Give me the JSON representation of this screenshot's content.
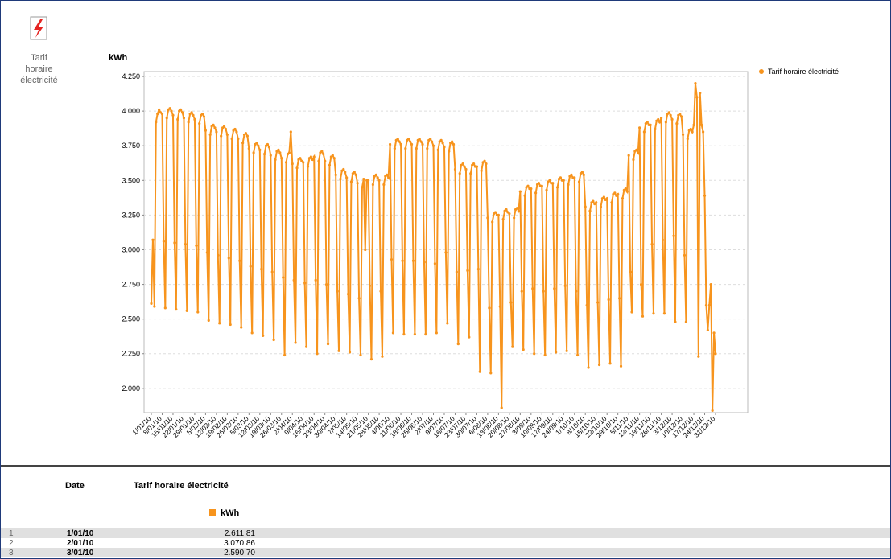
{
  "header": {
    "icon_label": "Tarif horaire électricité"
  },
  "chart_data": {
    "type": "line",
    "y_label": "kWh",
    "legend": "top-right",
    "grid": true,
    "ylim": [
      1825,
      4285
    ],
    "yticks": [
      {
        "value": 2000,
        "label": "2.000"
      },
      {
        "value": 2250,
        "label": "2.250"
      },
      {
        "value": 2500,
        "label": "2.500"
      },
      {
        "value": 2750,
        "label": "2.750"
      },
      {
        "value": 3000,
        "label": "3.000"
      },
      {
        "value": 3250,
        "label": "3.250"
      },
      {
        "value": 3500,
        "label": "3.500"
      },
      {
        "value": 3750,
        "label": "3.750"
      },
      {
        "value": 4000,
        "label": "4.000"
      },
      {
        "value": 4250,
        "label": "4.250"
      }
    ],
    "categories": [
      "1/01/10",
      null,
      null,
      null,
      null,
      null,
      null,
      "8/01/10",
      null,
      null,
      null,
      null,
      null,
      null,
      "15/01/10",
      null,
      null,
      null,
      null,
      null,
      null,
      "22/01/10",
      null,
      null,
      null,
      null,
      null,
      null,
      "29/01/10",
      null,
      null,
      null,
      null,
      null,
      null,
      "5/02/10",
      null,
      null,
      null,
      null,
      null,
      null,
      "12/02/10",
      null,
      null,
      null,
      null,
      null,
      null,
      "19/02/10",
      null,
      null,
      null,
      null,
      null,
      null,
      "26/02/10",
      null,
      null,
      null,
      null,
      null,
      null,
      "5/03/10",
      null,
      null,
      null,
      null,
      null,
      null,
      "12/03/10",
      null,
      null,
      null,
      null,
      null,
      null,
      "19/03/10",
      null,
      null,
      null,
      null,
      null,
      null,
      "26/03/10",
      null,
      null,
      null,
      null,
      null,
      null,
      "2/04/10",
      null,
      null,
      null,
      null,
      null,
      null,
      "9/04/10",
      null,
      null,
      null,
      null,
      null,
      null,
      "16/04/10",
      null,
      null,
      null,
      null,
      null,
      null,
      "23/04/10",
      null,
      null,
      null,
      null,
      null,
      null,
      "30/04/10",
      null,
      null,
      null,
      null,
      null,
      null,
      "7/05/10",
      null,
      null,
      null,
      null,
      null,
      null,
      "14/05/10",
      null,
      null,
      null,
      null,
      null,
      null,
      "21/05/10",
      null,
      null,
      null,
      null,
      null,
      null,
      "28/05/10",
      null,
      null,
      null,
      null,
      null,
      null,
      "4/06/10",
      null,
      null,
      null,
      null,
      null,
      null,
      "11/06/10",
      null,
      null,
      null,
      null,
      null,
      null,
      "18/06/10",
      null,
      null,
      null,
      null,
      null,
      null,
      "25/06/10",
      null,
      null,
      null,
      null,
      null,
      null,
      "2/07/10",
      null,
      null,
      null,
      null,
      null,
      null,
      "9/07/10",
      null,
      null,
      null,
      null,
      null,
      null,
      "16/07/10",
      null,
      null,
      null,
      null,
      null,
      null,
      "23/07/10",
      null,
      null,
      null,
      null,
      null,
      null,
      "30/07/10",
      null,
      null,
      null,
      null,
      null,
      null,
      "6/08/10",
      null,
      null,
      null,
      null,
      null,
      null,
      "13/08/10",
      null,
      null,
      null,
      null,
      null,
      null,
      "20/08/10",
      null,
      null,
      null,
      null,
      null,
      null,
      "27/08/10",
      null,
      null,
      null,
      null,
      null,
      null,
      "3/09/10",
      null,
      null,
      null,
      null,
      null,
      null,
      "10/09/10",
      null,
      null,
      null,
      null,
      null,
      null,
      "17/09/10",
      null,
      null,
      null,
      null,
      null,
      null,
      "24/09/10",
      null,
      null,
      null,
      null,
      null,
      null,
      "1/10/10",
      null,
      null,
      null,
      null,
      null,
      null,
      "8/10/10",
      null,
      null,
      null,
      null,
      null,
      null,
      "15/10/10",
      null,
      null,
      null,
      null,
      null,
      null,
      "22/10/10",
      null,
      null,
      null,
      null,
      null,
      null,
      "29/10/10",
      null,
      null,
      null,
      null,
      null,
      null,
      "5/11/10",
      null,
      null,
      null,
      null,
      null,
      null,
      "12/11/10",
      null,
      null,
      null,
      null,
      null,
      null,
      "19/11/10",
      null,
      null,
      null,
      null,
      null,
      null,
      "26/11/10",
      null,
      null,
      null,
      null,
      null,
      null,
      "3/12/10",
      null,
      null,
      null,
      null,
      null,
      null,
      "10/12/10",
      null,
      null,
      null,
      null,
      null,
      null,
      "17/12/10",
      null,
      null,
      null,
      null,
      null,
      null,
      "24/12/10",
      null,
      null,
      null,
      null,
      null,
      null,
      "31/12/10"
    ],
    "series": [
      {
        "name": "Tarif horaire électricité",
        "color": "#f7941d",
        "values": [
          2611.81,
          3070.86,
          2590.7,
          3920,
          3980,
          4010,
          3990,
          3980,
          3060,
          2580,
          3950,
          4010,
          4020,
          4000,
          3970,
          3050,
          2570,
          3940,
          4000,
          4010,
          3990,
          3950,
          3040,
          2560,
          3920,
          3980,
          3990,
          3970,
          3940,
          3030,
          2550,
          3910,
          3970,
          3980,
          3960,
          3860,
          2980,
          2490,
          3830,
          3890,
          3900,
          3880,
          3850,
          2960,
          2470,
          3820,
          3880,
          3890,
          3870,
          3830,
          2940,
          2460,
          3800,
          3860,
          3870,
          3850,
          3800,
          2920,
          2440,
          3770,
          3830,
          3840,
          3820,
          3730,
          2880,
          2400,
          3700,
          3760,
          3770,
          3750,
          3720,
          2860,
          2380,
          3690,
          3750,
          3760,
          3740,
          3680,
          2840,
          2350,
          3650,
          3710,
          3720,
          3700,
          3660,
          2800,
          2240,
          3630,
          3690,
          3700,
          3850,
          3620,
          2780,
          2330,
          3590,
          3650,
          3660,
          3640,
          3630,
          2760,
          2300,
          3600,
          3660,
          3670,
          3650,
          3670,
          2780,
          2250,
          3640,
          3700,
          3710,
          3690,
          3640,
          2750,
          2320,
          3610,
          3670,
          3680,
          3660,
          3540,
          2700,
          2270,
          3510,
          3570,
          3580,
          3560,
          3520,
          2680,
          2260,
          3490,
          3550,
          3560,
          3540,
          3480,
          2650,
          2240,
          3450,
          3510,
          3000,
          3500,
          3500,
          2740,
          2210,
          3470,
          3530,
          3540,
          3520,
          3500,
          2700,
          2230,
          3470,
          3530,
          3540,
          3520,
          3760,
          2930,
          2400,
          3730,
          3790,
          3800,
          3780,
          3760,
          2920,
          2390,
          3730,
          3790,
          3800,
          3780,
          3760,
          2920,
          2390,
          3730,
          3790,
          3800,
          3780,
          3760,
          2910,
          2390,
          3730,
          3790,
          3800,
          3780,
          3750,
          2900,
          2400,
          3720,
          3780,
          3790,
          3770,
          3740,
          2980,
          2470,
          3710,
          3770,
          3780,
          3760,
          3580,
          2840,
          2320,
          3550,
          3610,
          3620,
          3600,
          3580,
          2850,
          2370,
          3550,
          3610,
          3620,
          3600,
          3600,
          2860,
          2120,
          3570,
          3630,
          3640,
          3620,
          3230,
          2580,
          2110,
          3200,
          3260,
          3270,
          3250,
          3250,
          2590,
          1860,
          3220,
          3280,
          3290,
          3270,
          3260,
          2620,
          2300,
          3230,
          3290,
          3300,
          3280,
          3420,
          2700,
          2280,
          3390,
          3450,
          3460,
          3440,
          3440,
          2720,
          2250,
          3410,
          3470,
          3480,
          3460,
          3460,
          2700,
          2240,
          3430,
          3490,
          3500,
          3480,
          3480,
          2720,
          2260,
          3450,
          3510,
          3520,
          3500,
          3500,
          2740,
          2270,
          3470,
          3530,
          3540,
          3520,
          3520,
          2700,
          2240,
          3490,
          3550,
          3560,
          3540,
          3310,
          2600,
          2150,
          3280,
          3340,
          3350,
          3330,
          3340,
          2620,
          2170,
          3310,
          3370,
          3380,
          3360,
          3370,
          2640,
          2180,
          3340,
          3400,
          3410,
          3390,
          3400,
          2650,
          2160,
          3370,
          3430,
          3440,
          3420,
          3680,
          2840,
          2550,
          3650,
          3710,
          3720,
          3700,
          3880,
          2750,
          2520,
          3850,
          3910,
          3920,
          3900,
          3900,
          3040,
          2540,
          3870,
          3930,
          3940,
          3920,
          3950,
          3070,
          2540,
          3920,
          3980,
          3990,
          3970,
          3940,
          3100,
          2480,
          3910,
          3970,
          3980,
          3960,
          3830,
          2960,
          2480,
          3800,
          3860,
          3870,
          3850,
          3900,
          4200,
          4100,
          2230,
          4130,
          3900,
          3850,
          3390,
          2600,
          2420,
          2600,
          2750,
          1840,
          2400,
          2250
        ]
      }
    ]
  },
  "table": {
    "columns": [
      "Date",
      "Tarif horaire électricité"
    ],
    "unit": "kWh",
    "rows": [
      [
        "1",
        "1/01/10",
        "2.611,81"
      ],
      [
        "2",
        "2/01/10",
        "3.070,86"
      ],
      [
        "3",
        "3/01/10",
        "2.590,70"
      ]
    ]
  }
}
